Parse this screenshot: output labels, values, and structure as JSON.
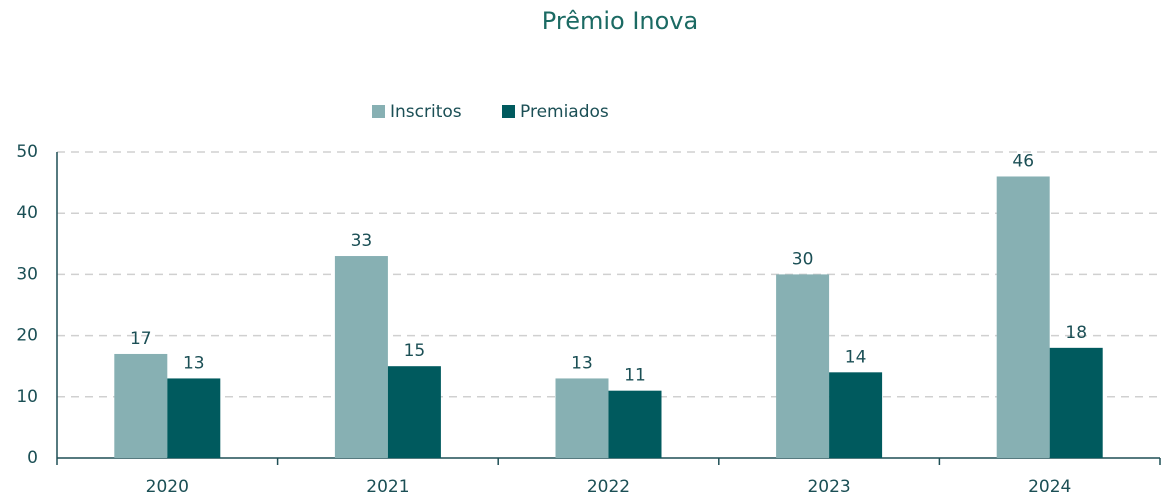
{
  "chart_data": {
    "type": "bar",
    "title": "Prêmio Inova",
    "categories": [
      "2020",
      "2021",
      "2022",
      "2023",
      "2024"
    ],
    "series": [
      {
        "name": "Inscritos",
        "color": "#87b0b3",
        "values": [
          17,
          33,
          13,
          30,
          46
        ]
      },
      {
        "name": "Premiados",
        "color": "#005a5e",
        "values": [
          13,
          15,
          11,
          14,
          18
        ]
      }
    ],
    "ylim": [
      0,
      50
    ],
    "yticks": [
      0,
      10,
      20,
      30,
      40,
      50
    ],
    "grid": true,
    "legend": "top"
  }
}
